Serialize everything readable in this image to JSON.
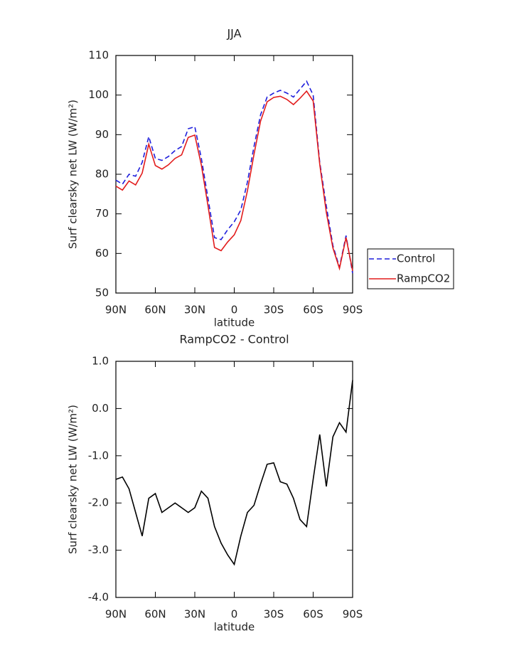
{
  "chart_data": [
    {
      "type": "line",
      "title": "JJA",
      "xlabel": "latitude",
      "ylabel": "Surf clearsky net LW (W/m²)",
      "x": [
        90,
        85,
        80,
        75,
        70,
        65,
        60,
        55,
        50,
        45,
        40,
        35,
        30,
        25,
        20,
        15,
        10,
        5,
        0,
        -5,
        -10,
        -15,
        -20,
        -25,
        -30,
        -35,
        -40,
        -45,
        -50,
        -55,
        -60,
        -65,
        -70,
        -75,
        -80,
        -85,
        -90
      ],
      "xlim": [
        90,
        -90
      ],
      "xticks": [
        {
          "value": 90,
          "label": "90N"
        },
        {
          "value": 60,
          "label": "60N"
        },
        {
          "value": 30,
          "label": "30N"
        },
        0,
        {
          "value": -30,
          "label": "30S"
        },
        {
          "value": -60,
          "label": "60S"
        },
        {
          "value": -90,
          "label": "90S"
        }
      ],
      "ylim": [
        50,
        110
      ],
      "yticks": [
        50,
        60,
        70,
        80,
        90,
        100,
        110
      ],
      "legend": "right",
      "series": [
        {
          "name": "Control",
          "color": "#1f1fdc",
          "linestyle": "dashed",
          "values": [
            78.5,
            77.5,
            80,
            79.5,
            83,
            89.5,
            84,
            83.5,
            84.5,
            86,
            87,
            91.5,
            92,
            84,
            74,
            64,
            63.5,
            66,
            68,
            71,
            78,
            87,
            95,
            99.5,
            100.5,
            101.2,
            100.5,
            99.5,
            101.5,
            103.5,
            100,
            83,
            72,
            62,
            56.5,
            64.5,
            55
          ]
        },
        {
          "name": "RampCO2",
          "color": "#e21b1b",
          "linestyle": "solid",
          "values": [
            77,
            76,
            78.3,
            77.3,
            80.3,
            87.6,
            82.2,
            81.3,
            82.4,
            84,
            84.9,
            89.3,
            89.9,
            82.3,
            72.1,
            61.5,
            60.7,
            62.9,
            64.7,
            68.3,
            75.8,
            85,
            93.4,
            98.3,
            99.4,
            99.7,
            98.9,
            97.6,
            99.2,
            101,
            98.5,
            82.5,
            70.4,
            61.4,
            56.2,
            64,
            55.6
          ]
        }
      ]
    },
    {
      "type": "line",
      "title": "RampCO2 - Control",
      "xlabel": "latitude",
      "ylabel": "Surf clearsky net LW (W/m²)",
      "x": [
        90,
        85,
        80,
        75,
        70,
        65,
        60,
        55,
        50,
        45,
        40,
        35,
        30,
        25,
        20,
        15,
        10,
        5,
        0,
        -5,
        -10,
        -15,
        -20,
        -25,
        -30,
        -35,
        -40,
        -45,
        -50,
        -55,
        -60,
        -65,
        -70,
        -75,
        -80,
        -85,
        -90
      ],
      "xlim": [
        90,
        -90
      ],
      "xticks": [
        {
          "value": 90,
          "label": "90N"
        },
        {
          "value": 60,
          "label": "60N"
        },
        {
          "value": 30,
          "label": "30N"
        },
        0,
        {
          "value": -30,
          "label": "30S"
        },
        {
          "value": -60,
          "label": "60S"
        },
        {
          "value": -90,
          "label": "90S"
        }
      ],
      "ylim": [
        -4,
        1
      ],
      "yticks": [
        {
          "value": -4,
          "label": "-4.0"
        },
        {
          "value": -3,
          "label": "-3.0"
        },
        {
          "value": -2,
          "label": "-2.0"
        },
        {
          "value": -1,
          "label": "-1.0"
        },
        {
          "value": 0,
          "label": "0.0"
        },
        {
          "value": 1,
          "label": "1.0"
        }
      ],
      "series": [
        {
          "name": null,
          "color": "#000000",
          "linestyle": "solid",
          "values": [
            -1.5,
            -1.45,
            -1.7,
            -2.2,
            -2.7,
            -1.9,
            -1.8,
            -2.2,
            -2.1,
            -2.0,
            -2.1,
            -2.2,
            -2.1,
            -1.75,
            -1.9,
            -2.5,
            -2.85,
            -3.1,
            -3.3,
            -2.7,
            -2.2,
            -2.05,
            -1.6,
            -1.18,
            -1.15,
            -1.55,
            -1.6,
            -1.9,
            -2.35,
            -2.5,
            -1.5,
            -0.55,
            -1.65,
            -0.6,
            -0.3,
            -0.5,
            0.6
          ]
        }
      ]
    }
  ]
}
